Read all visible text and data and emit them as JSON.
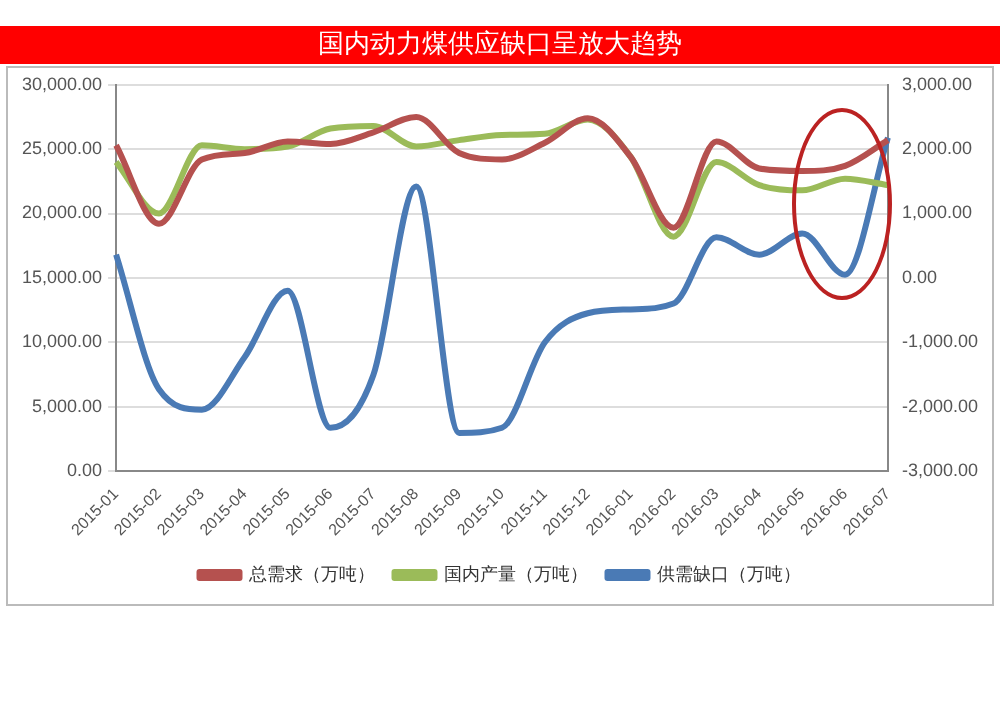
{
  "chart_data": {
    "type": "line",
    "title": "国内动力煤供应缺口呈放大趋势",
    "categories": [
      "2015-01",
      "2015-02",
      "2015-03",
      "2015-04",
      "2015-05",
      "2015-06",
      "2015-07",
      "2015-08",
      "2015-09",
      "2015-10",
      "2015-11",
      "2015-12",
      "2016-01",
      "2016-02",
      "2016-03",
      "2016-04",
      "2016-05",
      "2016-06",
      "2016-07"
    ],
    "series": [
      {
        "name": "总需求（万吨）",
        "color": "#b5514f",
        "values": [
          25300,
          19200,
          24200,
          24700,
          25600,
          25400,
          26300,
          27500,
          24700,
          24200,
          25500,
          27400,
          24400,
          18900,
          25600,
          23500,
          23300,
          23700,
          25700
        ]
      },
      {
        "name": "国内产量（万吨）",
        "color": "#9bbb59",
        "values": [
          24000,
          20000,
          25300,
          25000,
          25200,
          26600,
          26800,
          25200,
          25700,
          26100,
          26200,
          27300,
          24400,
          18200,
          24000,
          22200,
          21800,
          22700,
          22200
        ]
      },
      {
        "name": "供需缺口（万吨）",
        "color": "#4a7ab5",
        "axis": "y2",
        "values": [
          360,
          -1730,
          -2050,
          -1230,
          -200,
          -2330,
          -1510,
          1420,
          -2410,
          -2330,
          -1000,
          -550,
          -490,
          -400,
          630,
          360,
          690,
          50,
          2180
        ]
      }
    ],
    "ylim": [
      0,
      30000
    ],
    "yticks": [
      {
        "value": 0,
        "label": "0.00"
      },
      {
        "value": 5000,
        "label": "5,000.00"
      },
      {
        "value": 10000,
        "label": "10,000.00"
      },
      {
        "value": 15000,
        "label": "15,000.00"
      },
      {
        "value": 20000,
        "label": "20,000.00"
      },
      {
        "value": 25000,
        "label": "25,000.00"
      },
      {
        "value": 30000,
        "label": "30,000.00"
      }
    ],
    "y2lim": [
      -3000,
      3000
    ],
    "y2ticks": [
      {
        "value": -3000,
        "label": "-3,000.00"
      },
      {
        "value": -2000,
        "label": "-2,000.00"
      },
      {
        "value": -1000,
        "label": "-1,000.00"
      },
      {
        "value": 0,
        "label": "0.00"
      },
      {
        "value": 1000,
        "label": "1,000.00"
      },
      {
        "value": 2000,
        "label": "2,000.00"
      },
      {
        "value": 3000,
        "label": "3,000.00"
      }
    ],
    "grid": "y",
    "legend": "bottom",
    "marker": "none",
    "line_style": "solid"
  }
}
